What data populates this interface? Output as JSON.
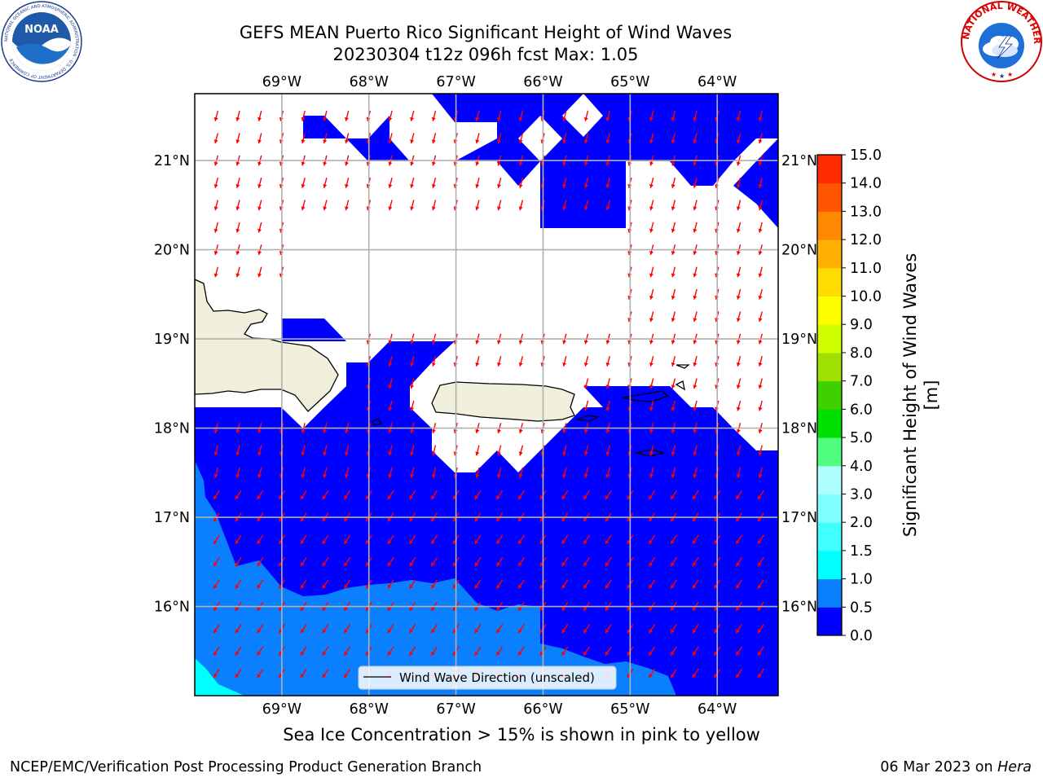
{
  "header": {
    "title_line1": "GEFS MEAN Puerto Rico Significant Height of Wind Waves",
    "title_line2": "20230304 t12z 096h fcst   Max: 1.05"
  },
  "logos": {
    "left": {
      "text": "NOAA",
      "ring_text": "NATIONAL OCEANIC AND ATMOSPHERIC ADMINISTRATION · U.S. DEPARTMENT OF COMMERCE ·"
    },
    "right": {
      "ring_text": "NATIONAL WEATHER SERVICE"
    }
  },
  "map": {
    "lon_range": [
      -70.0,
      -63.3
    ],
    "lat_range": [
      15.0,
      21.75
    ],
    "lon_ticks": [
      "69°W",
      "68°W",
      "67°W",
      "66°W",
      "65°W",
      "64°W"
    ],
    "lat_ticks": [
      "21°N",
      "20°N",
      "19°N",
      "18°N",
      "17°N",
      "16°N"
    ],
    "grid": true,
    "legend_label": "Wind Wave Direction (unscaled)",
    "arrow_color": "#ff0000",
    "land_color": "#efefdb",
    "colors": {
      "0.0-0.5": "#0000ff",
      "0.5-1.0": "#0a80ff",
      "1.0-1.5": "#00ffff"
    }
  },
  "colorbar": {
    "label": "Significant Height of Wind Waves [m]",
    "levels": [
      "0.0",
      "0.5",
      "1.0",
      "1.5",
      "2.0",
      "3.0",
      "4.0",
      "5.0",
      "6.0",
      "7.0",
      "8.0",
      "9.0",
      "10.0",
      "11.0",
      "12.0",
      "13.0",
      "14.0",
      "15.0"
    ],
    "colors": [
      "#0000ff",
      "#0a80ff",
      "#00ffff",
      "#40ffff",
      "#7fffff",
      "#b0ffff",
      "#50ff80",
      "#00e000",
      "#40d000",
      "#a0e000",
      "#d0ff00",
      "#ffff00",
      "#ffdd00",
      "#ffb000",
      "#ff8800",
      "#ff5500",
      "#ff2a00"
    ]
  },
  "caption": "Sea Ice Concentration > 15% is shown in pink to yellow",
  "footer": {
    "left": "NCEP/EMC/Verification Post Processing Product Generation Branch",
    "right_date": "06 Mar 2023 on ",
    "right_host": "Hera"
  }
}
